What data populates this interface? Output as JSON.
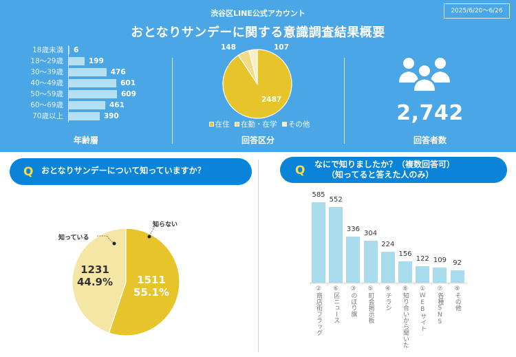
{
  "header": {
    "subtitle": "渋谷区LINE公式アカウント",
    "title": "おとなりサンデーに関する意識調査結果概要",
    "date_range": "2025/6/20～6/26"
  },
  "age_section": {
    "label": "年齢層",
    "items": [
      {
        "label": "18歳未満",
        "value": 6
      },
      {
        "label": "18～29歳",
        "value": 199
      },
      {
        "label": "30～39歳",
        "value": 476
      },
      {
        "label": "40～49歳",
        "value": 601
      },
      {
        "label": "50～59歳",
        "value": 609
      },
      {
        "label": "60～69歳",
        "value": 461
      },
      {
        "label": "70歳以上",
        "value": 390
      }
    ],
    "bar_color": "#b6dff1"
  },
  "category_section": {
    "label": "回答区分",
    "slices": [
      {
        "label": "在住",
        "value": 2487,
        "color": "#e6c42a"
      },
      {
        "label": "在勤・在学",
        "value": 148,
        "color": "#f0dc86"
      },
      {
        "label": "その他",
        "value": 107,
        "color": "#f7eec4"
      }
    ]
  },
  "respondents_section": {
    "icon": "people-group-icon",
    "count": "2,742",
    "label": "回答者数"
  },
  "q1": {
    "mark": "Q",
    "question": "おとなりサンデーについて知っていますか？",
    "slices": [
      {
        "label": "知らない",
        "value": 1511,
        "percent": "55.1%",
        "color": "#e6c42a",
        "text_color": "#ffffff"
      },
      {
        "label": "知っている",
        "value": 1231,
        "percent": "44.9%",
        "color": "#f5e6a6",
        "text_color": "#333333"
      }
    ]
  },
  "q2": {
    "mark": "Q",
    "question_line1": "なにで知りましたか？（複数回答可）",
    "question_line2": "（知ってると答えた人のみ）",
    "bars": [
      {
        "label": "②商店街フラッグ",
        "value": 585
      },
      {
        "label": "⑥区ニュース",
        "value": 552
      },
      {
        "label": "③のぼり旗",
        "value": 336
      },
      {
        "label": "⑤町会掲示板",
        "value": 304
      },
      {
        "label": "④チラシ",
        "value": 224
      },
      {
        "label": "⑧知り合いから聞いた",
        "value": 156
      },
      {
        "label": "①WEBサイト",
        "value": 122
      },
      {
        "label": "⑦各種SNS",
        "value": 109
      },
      {
        "label": "⑨その他",
        "value": 92
      }
    ],
    "bar_color": "#a8dced"
  },
  "chart_data": [
    {
      "type": "bar",
      "orientation": "horizontal",
      "title": "年齢層",
      "categories": [
        "18歳未満",
        "18～29歳",
        "30～39歳",
        "40～49歳",
        "50～59歳",
        "60～69歳",
        "70歳以上"
      ],
      "values": [
        6,
        199,
        476,
        601,
        609,
        461,
        390
      ],
      "xlabel": "",
      "ylabel": ""
    },
    {
      "type": "pie",
      "title": "回答区分",
      "categories": [
        "在住",
        "在勤・在学",
        "その他"
      ],
      "values": [
        2487,
        148,
        107
      ],
      "legend": "bottom"
    },
    {
      "type": "pie",
      "title": "おとなりサンデーについて知っていますか？",
      "categories": [
        "知らない",
        "知っている"
      ],
      "values": [
        1511,
        1231
      ],
      "percents": [
        55.1,
        44.9
      ]
    },
    {
      "type": "bar",
      "orientation": "vertical",
      "title": "なにで知りましたか？（複数回答可）（知ってると答えた人のみ）",
      "categories": [
        "②商店街フラッグ",
        "⑥区ニュース",
        "③のぼり旗",
        "⑤町会掲示板",
        "④チラシ",
        "⑧知り合いから聞いた",
        "①WEBサイト",
        "⑦各種SNS",
        "⑨その他"
      ],
      "values": [
        585,
        552,
        336,
        304,
        224,
        156,
        122,
        109,
        92
      ],
      "xlabel": "",
      "ylabel": ""
    }
  ]
}
